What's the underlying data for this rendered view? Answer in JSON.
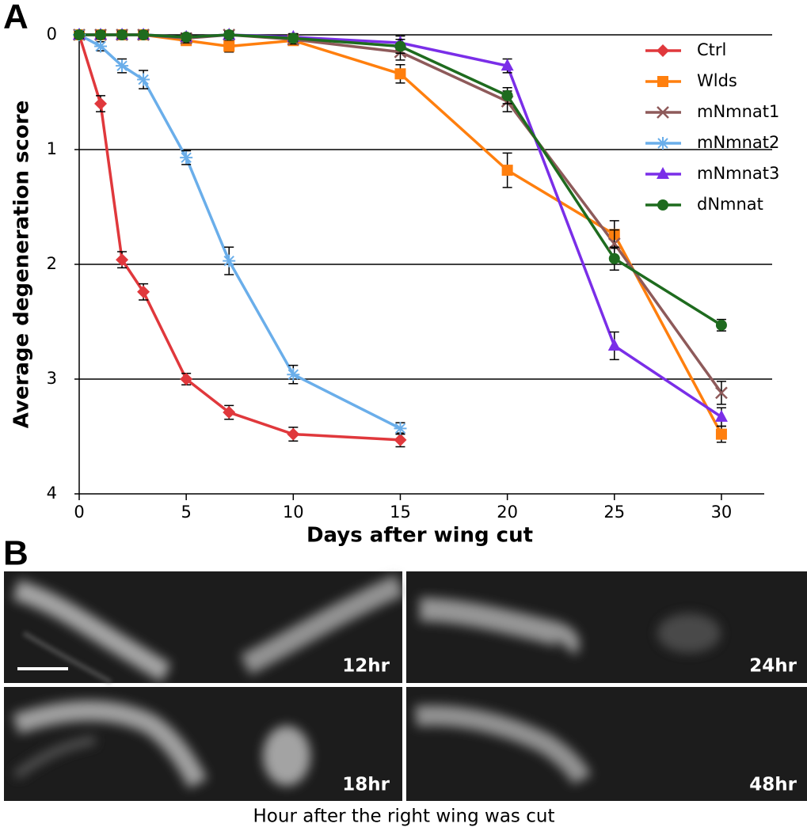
{
  "chart_data": {
    "type": "line",
    "panel_label": "A",
    "xlabel": "Days after wing cut",
    "ylabel": "Average degeneration score",
    "xlim": [
      0,
      32
    ],
    "ylim": [
      0,
      4
    ],
    "y_inverted": true,
    "xticks": [
      0,
      5,
      10,
      15,
      20,
      25,
      30
    ],
    "yticks": [
      0,
      1,
      2,
      3,
      4
    ],
    "grid": true,
    "legend": "upper right",
    "series": [
      {
        "name": "Ctrl",
        "color": "#e0383c",
        "marker": "diamond",
        "x": [
          0,
          1,
          2,
          3,
          5,
          7,
          10,
          15
        ],
        "values": [
          0,
          0.6,
          1.96,
          2.24,
          3.0,
          3.29,
          3.48,
          3.53
        ],
        "errors": [
          0.03,
          0.07,
          0.07,
          0.07,
          0.05,
          0.06,
          0.06,
          0.06
        ]
      },
      {
        "name": "Wlds",
        "color": "#ff7f0e",
        "marker": "square",
        "x": [
          0,
          1,
          2,
          3,
          5,
          7,
          10,
          15,
          20,
          25,
          30
        ],
        "values": [
          0,
          0,
          0,
          0,
          0.05,
          0.1,
          0.05,
          0.34,
          1.18,
          1.74,
          3.48
        ],
        "errors": [
          0.03,
          0.03,
          0.03,
          0.03,
          0.04,
          0.05,
          0.04,
          0.08,
          0.15,
          0.12,
          0.07
        ]
      },
      {
        "name": "mNmnat1",
        "color": "#8e5a5a",
        "marker": "x",
        "x": [
          0,
          1,
          2,
          3,
          5,
          7,
          10,
          15,
          20,
          25,
          30
        ],
        "values": [
          0,
          0,
          0,
          0,
          0.03,
          0,
          0.04,
          0.15,
          0.58,
          1.82,
          3.12
        ],
        "errors": [
          0.03,
          0.03,
          0.03,
          0.03,
          0.04,
          0.03,
          0.04,
          0.07,
          0.09,
          0.12,
          0.1
        ]
      },
      {
        "name": "mNmnat2",
        "color": "#6aaeea",
        "marker": "asterisk",
        "x": [
          0,
          1,
          2,
          3,
          5,
          7,
          10,
          15
        ],
        "values": [
          0,
          0.1,
          0.27,
          0.39,
          1.07,
          1.97,
          2.96,
          3.43
        ],
        "errors": [
          0.03,
          0.04,
          0.06,
          0.08,
          0.06,
          0.12,
          0.08,
          0.05
        ]
      },
      {
        "name": "mNmnat3",
        "color": "#7a2ee8",
        "marker": "triangle",
        "x": [
          0,
          1,
          2,
          3,
          5,
          7,
          10,
          15,
          20,
          25,
          30
        ],
        "values": [
          0,
          0,
          0,
          0,
          0.02,
          0,
          0.02,
          0.07,
          0.27,
          2.71,
          3.33
        ],
        "errors": [
          0.03,
          0.03,
          0.03,
          0.03,
          0.03,
          0.03,
          0.03,
          0.06,
          0.06,
          0.12,
          0.08
        ]
      },
      {
        "name": "dNmnat",
        "color": "#1e6b1e",
        "marker": "circle",
        "x": [
          0,
          1,
          2,
          3,
          5,
          7,
          10,
          15,
          20,
          25,
          30
        ],
        "values": [
          0,
          0,
          0,
          0,
          0.02,
          0,
          0.03,
          0.1,
          0.53,
          1.95,
          2.53
        ],
        "errors": [
          0.03,
          0.03,
          0.03,
          0.03,
          0.03,
          0.03,
          0.03,
          0.06,
          0.07,
          0.1,
          0.05
        ]
      }
    ]
  },
  "micrographs": {
    "panel_label": "B",
    "caption": "Hour after the right wing was cut",
    "images": [
      {
        "label": "12hr"
      },
      {
        "label": "24hr"
      },
      {
        "label": "18hr"
      },
      {
        "label": "48hr"
      }
    ]
  }
}
